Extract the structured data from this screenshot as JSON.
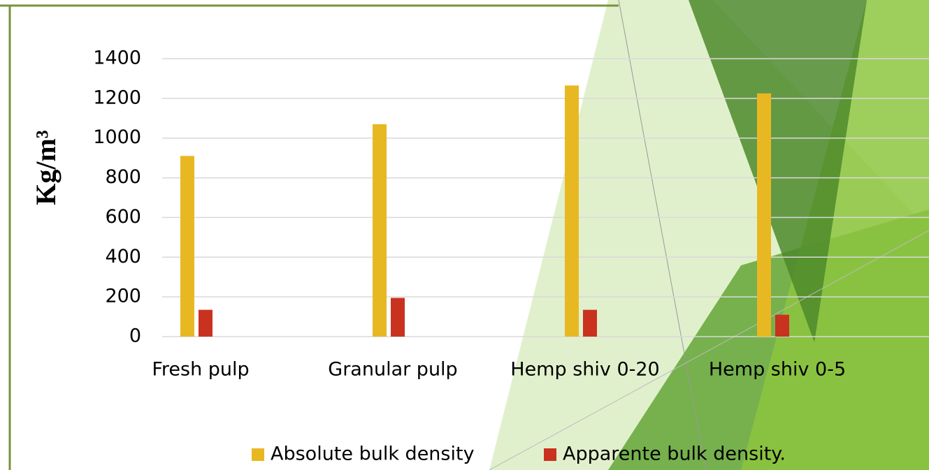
{
  "chart_data": {
    "type": "bar",
    "y_label": "Kg/m³",
    "categories": [
      "Fresh pulp",
      "Granular pulp",
      "Hemp shiv 0-20",
      "Hemp shiv 0-5"
    ],
    "series": [
      {
        "name": "Absolute bulk density",
        "color": "#e8b822",
        "values": [
          910,
          1070,
          1265,
          1225
        ]
      },
      {
        "name": "Apparente bulk density.",
        "color": "#c9321f",
        "values": [
          135,
          195,
          135,
          110
        ]
      }
    ],
    "ylim": [
      0,
      1400
    ],
    "yticks": [
      0,
      200,
      400,
      600,
      800,
      1000,
      1200,
      1400
    ],
    "grid": true,
    "legend": "bottom"
  }
}
